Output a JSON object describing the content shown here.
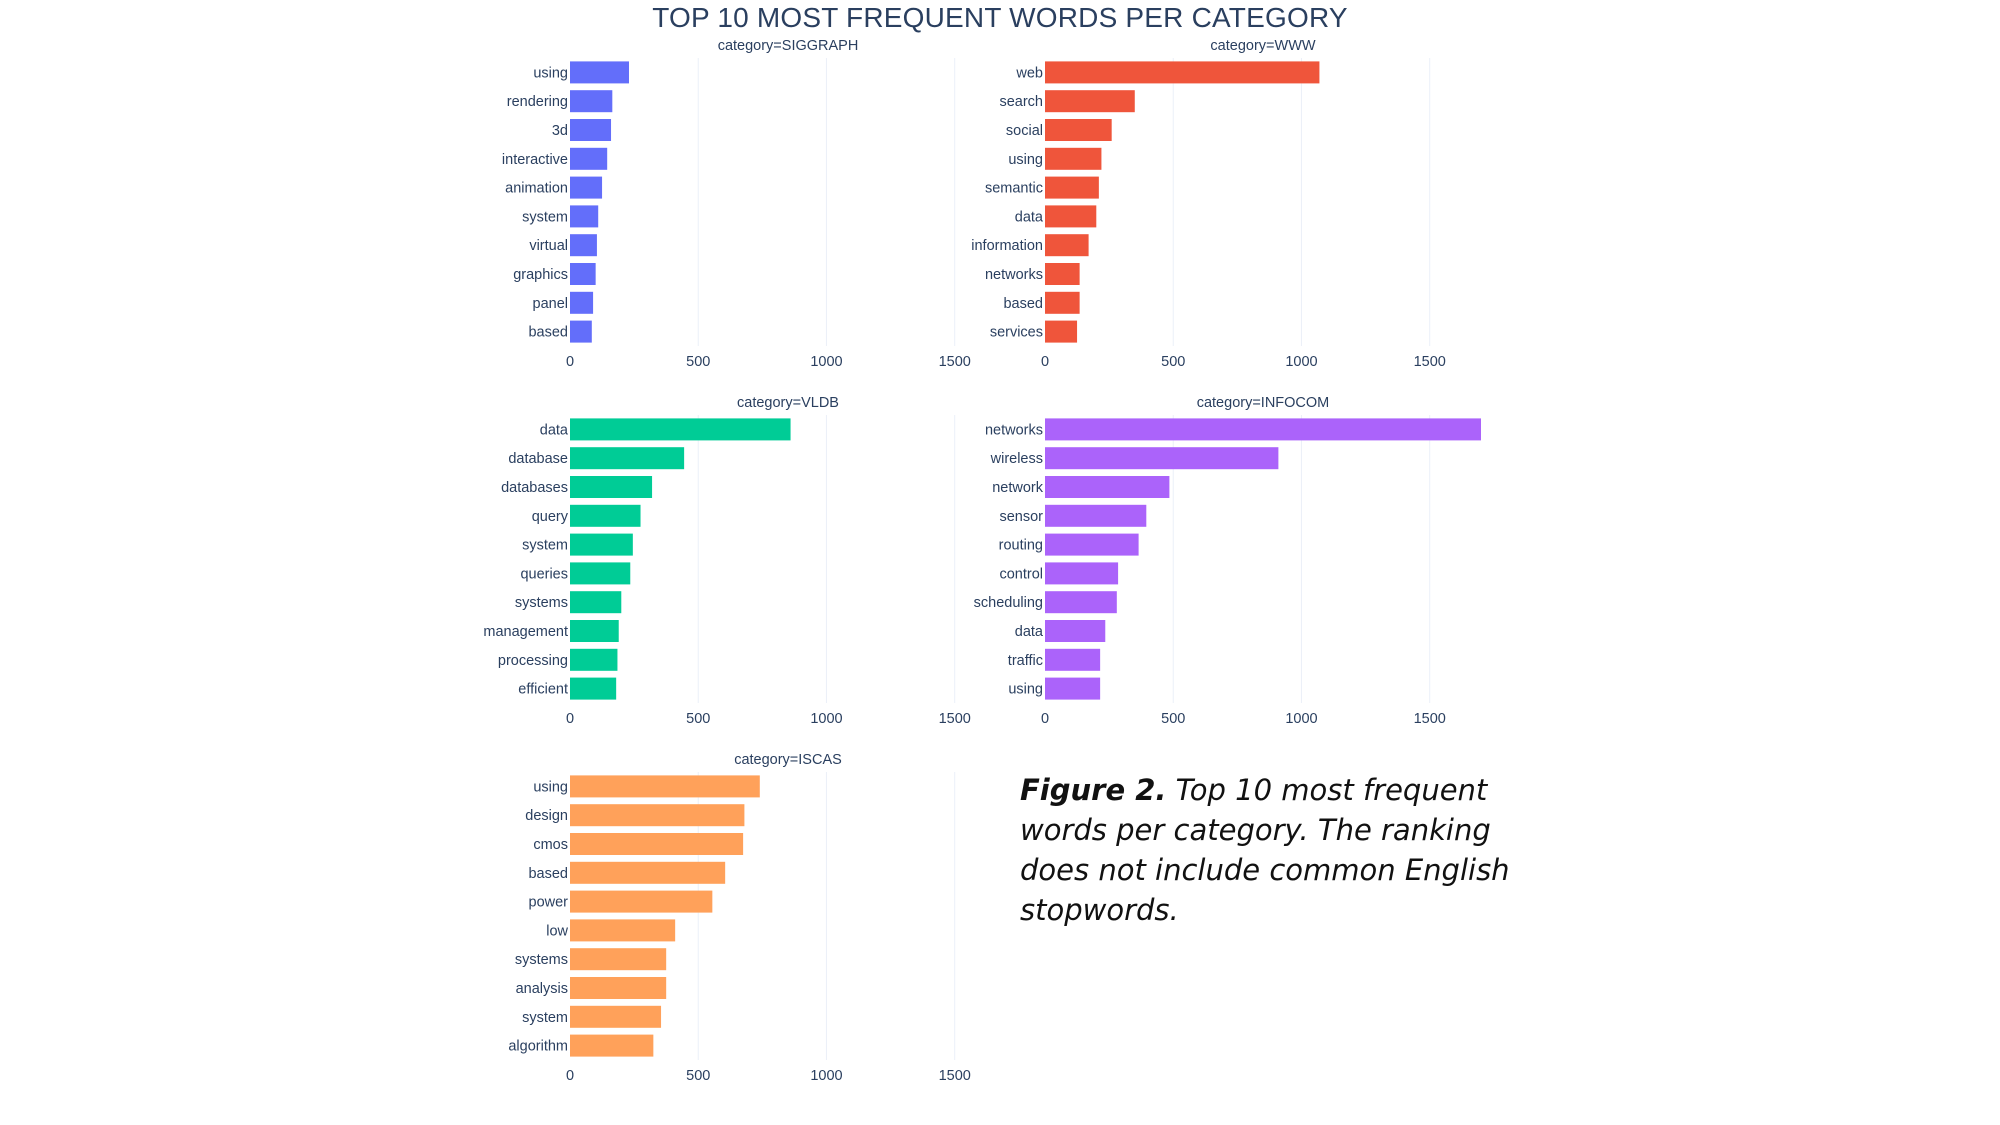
{
  "title": "TOP 10 MOST FREQUENT WORDS PER CATEGORY",
  "caption": {
    "label": "Figure 2.",
    "text": " Top 10 most frequent words per category. The ranking does not include common English stopwords."
  },
  "chart_data": [
    {
      "type": "bar",
      "orientation": "horizontal",
      "title": "category=SIGGRAPH",
      "color": "#636efa",
      "categories": [
        "using",
        "rendering",
        "3d",
        "interactive",
        "animation",
        "system",
        "virtual",
        "graphics",
        "panel",
        "based"
      ],
      "values": [
        230,
        165,
        160,
        145,
        125,
        110,
        105,
        100,
        90,
        85
      ],
      "xlim": [
        0,
        1700
      ],
      "xticks": [
        0,
        500,
        1000,
        1500
      ],
      "grid": true
    },
    {
      "type": "bar",
      "orientation": "horizontal",
      "title": "category=WWW",
      "color": "#ef553b",
      "categories": [
        "web",
        "search",
        "social",
        "using",
        "semantic",
        "data",
        "information",
        "networks",
        "based",
        "services"
      ],
      "values": [
        1070,
        350,
        260,
        220,
        210,
        200,
        170,
        135,
        135,
        125
      ],
      "xlim": [
        0,
        1700
      ],
      "xticks": [
        0,
        500,
        1000,
        1500
      ],
      "grid": true
    },
    {
      "type": "bar",
      "orientation": "horizontal",
      "title": "category=VLDB",
      "color": "#00cc96",
      "categories": [
        "data",
        "database",
        "databases",
        "query",
        "system",
        "queries",
        "systems",
        "management",
        "processing",
        "efficient"
      ],
      "values": [
        860,
        445,
        320,
        275,
        245,
        235,
        200,
        190,
        185,
        180
      ],
      "xlim": [
        0,
        1700
      ],
      "xticks": [
        0,
        500,
        1000,
        1500
      ],
      "grid": true
    },
    {
      "type": "bar",
      "orientation": "horizontal",
      "title": "category=INFOCOM",
      "color": "#ab63fa",
      "categories": [
        "networks",
        "wireless",
        "network",
        "sensor",
        "routing",
        "control",
        "scheduling",
        "data",
        "traffic",
        "using"
      ],
      "values": [
        1700,
        910,
        485,
        395,
        365,
        285,
        280,
        235,
        215,
        215
      ],
      "xlim": [
        0,
        1700
      ],
      "xticks": [
        0,
        500,
        1000,
        1500
      ],
      "grid": true
    },
    {
      "type": "bar",
      "orientation": "horizontal",
      "title": "category=ISCAS",
      "color": "#ffa15a",
      "categories": [
        "using",
        "design",
        "cmos",
        "based",
        "power",
        "low",
        "systems",
        "analysis",
        "system",
        "algorithm"
      ],
      "values": [
        740,
        680,
        675,
        605,
        555,
        410,
        375,
        375,
        355,
        325
      ],
      "xlim": [
        0,
        1700
      ],
      "xticks": [
        0,
        500,
        1000,
        1500
      ],
      "grid": true
    }
  ]
}
